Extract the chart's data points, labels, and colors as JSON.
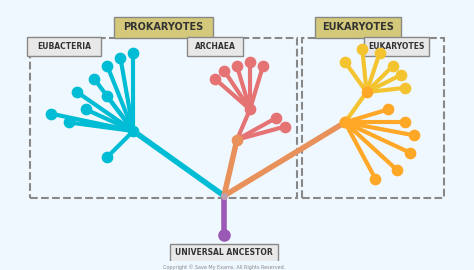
{
  "bg_color": "#f0f8ff",
  "title_prokaryotes": "PROKARYOTES",
  "title_eukaryotes": "EUKARYOTES",
  "label_eubacteria": "EUBACTERIA",
  "label_archaea": "ARCHAEA",
  "label_eukaryotes_box": "EUKARYOTES",
  "label_ancestor": "UNIVERSAL ANCESTOR",
  "color_eubacteria": "#00bcd4",
  "color_archaea": "#e57373",
  "color_archaea_stem": "#e8915a",
  "color_eukaryotes": "#ffa726",
  "color_eukaryotes_dark": "#f4c430",
  "color_stem": "#c0a0b0",
  "color_root": "#9b59b6",
  "color_title_bg": "#d4c97a",
  "color_label_bg": "#e8e8e8",
  "lw": 3.0,
  "dot_size": 55
}
